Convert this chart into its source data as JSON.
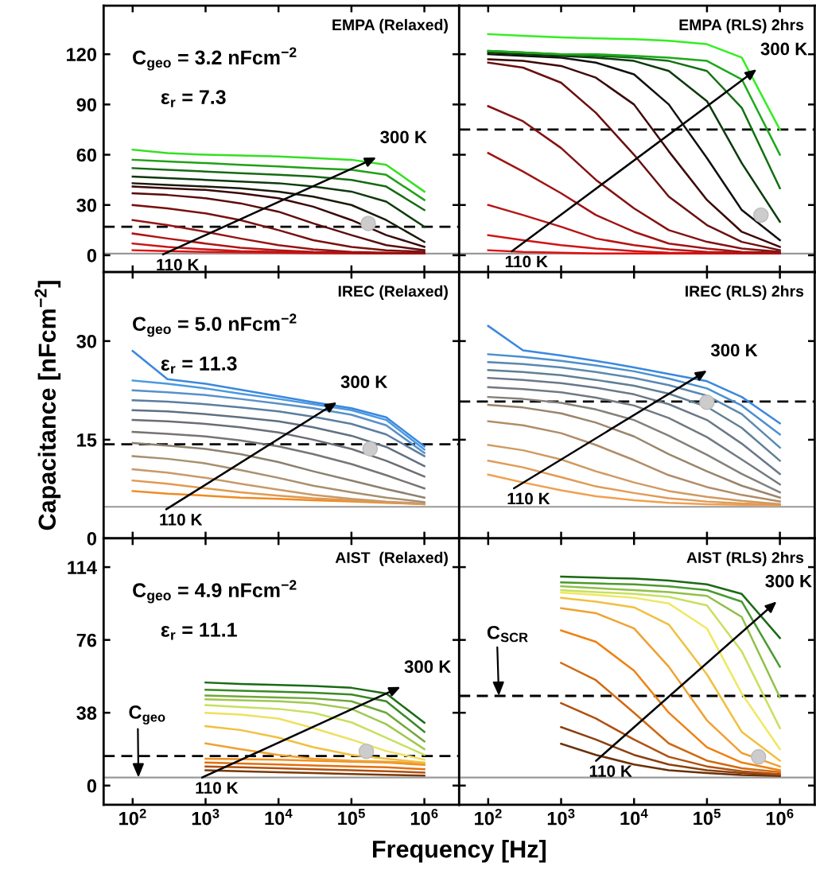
{
  "chart_data": [
    {
      "type": "line",
      "title": "EMPA (Relaxed)",
      "log": "x",
      "tick_labels": "y",
      "xlim": [
        40,
        3000000
      ],
      "ylim": [
        -10,
        149
      ],
      "xticks": [
        {
          "value": 100,
          "label": null
        },
        {
          "value": 1000,
          "label": null
        },
        {
          "value": 10000,
          "label": null
        },
        {
          "value": 100000,
          "label": null
        },
        {
          "value": 1000000,
          "label": null
        }
      ],
      "yticks": [
        0,
        30,
        60,
        90,
        120
      ],
      "x": [
        100,
        300,
        1000,
        3000,
        10000,
        30000,
        100000,
        300000,
        1000000
      ],
      "series": [
        {
          "color": "#e01010",
          "values": [
            3,
            2.5,
            2,
            1.8,
            1.5,
            1.3,
            1.2,
            1,
            1
          ]
        },
        {
          "color": "#c81414",
          "values": [
            7,
            5,
            3.5,
            2.5,
            2,
            1.5,
            1.3,
            1.1,
            1
          ]
        },
        {
          "color": "#b01515",
          "values": [
            13,
            10,
            7,
            4.5,
            3,
            2,
            1.5,
            1.2,
            1
          ]
        },
        {
          "color": "#961414",
          "values": [
            21,
            18,
            14,
            10,
            6,
            3.5,
            2,
            1.5,
            1.2
          ]
        },
        {
          "color": "#7a1010",
          "values": [
            30,
            28,
            25,
            21,
            15,
            9,
            5,
            3,
            2
          ]
        },
        {
          "color": "#5c0c0c",
          "values": [
            37,
            36,
            34,
            31,
            26,
            19,
            12,
            6,
            3
          ]
        },
        {
          "color": "#3c0808",
          "values": [
            41,
            40,
            39,
            37,
            34,
            29,
            21,
            12,
            5
          ]
        },
        {
          "color": "#1a1a0a",
          "values": [
            43,
            42,
            41,
            40,
            38,
            35,
            30,
            21,
            8
          ]
        },
        {
          "color": "#0f3a0f",
          "values": [
            47,
            46,
            45,
            44,
            43,
            41,
            38,
            32,
            17
          ]
        },
        {
          "color": "#176a14",
          "values": [
            52,
            51,
            50,
            49,
            48,
            47,
            45,
            41,
            27
          ]
        },
        {
          "color": "#22a018",
          "values": [
            57,
            56,
            55,
            54,
            53,
            52,
            51,
            48,
            33
          ]
        },
        {
          "color": "#33e020",
          "values": [
            63,
            61,
            60,
            59.5,
            59,
            58,
            57,
            54,
            38
          ]
        },
        {
          "type": "scatter",
          "marker": "circle",
          "color": "#cccccc",
          "x": [
            170000
          ],
          "values": [
            19
          ]
        }
      ],
      "ref_lines": [
        {
          "axis": "y",
          "value": 1,
          "color": "#999999",
          "line_style": "solid"
        },
        {
          "axis": "y",
          "value": 17,
          "color": "#000000",
          "line_style": "dashed"
        }
      ],
      "annotations": [
        "110 K",
        "300 K",
        "C$_{geo}$ = 3.2 nFcm$^{−2}$",
        "ε$_{r}$ = 7.3"
      ]
    },
    {
      "type": "line",
      "title": "EMPA (RLS) 2hrs",
      "log": "x",
      "tick_labels": false,
      "xlim": [
        40,
        3000000
      ],
      "ylim": [
        -10,
        149
      ],
      "xticks": [
        {
          "value": 100,
          "label": null
        },
        {
          "value": 1000,
          "label": null
        },
        {
          "value": 10000,
          "label": null
        },
        {
          "value": 100000,
          "label": null
        },
        {
          "value": 1000000,
          "label": null
        }
      ],
      "yticks": [
        0,
        30,
        60,
        90,
        120
      ],
      "x": [
        100,
        300,
        1000,
        3000,
        10000,
        30000,
        100000,
        300000,
        1000000
      ],
      "series": [
        {
          "color": "#e01010",
          "values": [
            3,
            2,
            1.5,
            1,
            1,
            1,
            1,
            1,
            1
          ]
        },
        {
          "color": "#d01414",
          "values": [
            12,
            9,
            6,
            4,
            2.5,
            1.5,
            1.2,
            1,
            1
          ]
        },
        {
          "color": "#b81515",
          "values": [
            30,
            24,
            17,
            10,
            6,
            3.5,
            2,
            1.5,
            1
          ]
        },
        {
          "color": "#a01414",
          "values": [
            61,
            50,
            37,
            24,
            14,
            7,
            4,
            2,
            1.5
          ]
        },
        {
          "color": "#841212",
          "values": [
            89,
            80,
            64,
            45,
            28,
            15,
            8,
            4,
            2
          ]
        },
        {
          "color": "#6a1010",
          "values": [
            115,
            112,
            103,
            85,
            60,
            35,
            18,
            8,
            3
          ]
        },
        {
          "color": "#3c0808",
          "values": [
            117,
            116,
            113,
            106,
            90,
            62,
            33,
            14,
            5
          ]
        },
        {
          "color": "#101010",
          "values": [
            120,
            119,
            118,
            115,
            108,
            90,
            58,
            27,
            9
          ]
        },
        {
          "color": "#0c3a0c",
          "values": [
            121,
            120,
            119,
            118,
            116,
            110,
            92,
            55,
            20
          ]
        },
        {
          "color": "#127012",
          "values": [
            122,
            121,
            120,
            119,
            118,
            116,
            110,
            88,
            40
          ]
        },
        {
          "color": "#1ea81c",
          "values": [
            122,
            121,
            120,
            120,
            119,
            118,
            116,
            105,
            60
          ]
        },
        {
          "color": "#33ee22",
          "values": [
            132,
            131,
            130,
            129.5,
            129,
            128,
            126,
            118,
            75
          ]
        },
        {
          "type": "scatter",
          "marker": "circle",
          "color": "#cccccc",
          "x": [
            550000
          ],
          "values": [
            24
          ]
        }
      ],
      "ref_lines": [
        {
          "axis": "y",
          "value": 1,
          "color": "#999999",
          "line_style": "solid"
        },
        {
          "axis": "y",
          "value": 75,
          "color": "#000000",
          "line_style": "dashed"
        }
      ],
      "annotations": [
        "110 K",
        "300 K"
      ]
    },
    {
      "type": "line",
      "title": "IREC (Relaxed)",
      "ylabel": "Capacitance [nFcm$^{−2}$]",
      "log": "x",
      "tick_labels": "y",
      "xlim": [
        40,
        3000000
      ],
      "ylim": [
        0,
        40.5
      ],
      "xticks": [
        {
          "value": 100,
          "label": null
        },
        {
          "value": 1000,
          "label": null
        },
        {
          "value": 10000,
          "label": null
        },
        {
          "value": 100000,
          "label": null
        },
        {
          "value": 1000000,
          "label": null
        }
      ],
      "yticks": [
        0,
        15,
        30
      ],
      "x": [
        100,
        300,
        1000,
        3000,
        10000,
        30000,
        100000,
        300000,
        1000000
      ],
      "series": [
        {
          "color": "#f08a20",
          "values": [
            7.2,
            6.8,
            6.5,
            6.2,
            6,
            5.8,
            5.6,
            5.4,
            5.2
          ]
        },
        {
          "color": "#e09a50",
          "values": [
            8.8,
            8.3,
            7.6,
            7,
            6.5,
            6.1,
            5.8,
            5.5,
            5.2
          ]
        },
        {
          "color": "#c89a6a",
          "values": [
            10.5,
            10,
            9.2,
            8.3,
            7.4,
            6.6,
            6,
            5.6,
            5.3
          ]
        },
        {
          "color": "#a8906e",
          "values": [
            12.5,
            12.1,
            11.4,
            10.4,
            9.2,
            8,
            7,
            6.2,
            5.5
          ]
        },
        {
          "color": "#8c8070",
          "values": [
            14.5,
            14.1,
            13.6,
            12.8,
            11.6,
            10.2,
            8.8,
            7.5,
            6.2
          ]
        },
        {
          "color": "#787474",
          "values": [
            16.2,
            15.9,
            15.5,
            14.9,
            14,
            12.8,
            11.3,
            9.6,
            7.6
          ]
        },
        {
          "color": "#6a6e74",
          "values": [
            18,
            17.8,
            17.4,
            16.9,
            16.1,
            15,
            13.6,
            11.8,
            9.4
          ]
        },
        {
          "color": "#607080",
          "values": [
            19.5,
            19.3,
            18.9,
            18.4,
            17.8,
            16.9,
            15.6,
            13.9,
            11
          ]
        },
        {
          "color": "#5a7ea0",
          "values": [
            21,
            20.8,
            20.4,
            19.9,
            19.3,
            18.5,
            17.4,
            15.8,
            12.5
          ]
        },
        {
          "color": "#5a90c8",
          "values": [
            22.5,
            22.2,
            21.8,
            21.2,
            20.5,
            19.8,
            18.8,
            17.2,
            13
          ]
        },
        {
          "color": "#4a98e0",
          "values": [
            24,
            23.5,
            22.8,
            22,
            21.2,
            20.4,
            19.5,
            18,
            13.5
          ]
        },
        {
          "color": "#3a88e0",
          "values": [
            28.5,
            24.2,
            23.5,
            22.6,
            21.6,
            20.7,
            19.8,
            18.4,
            14
          ]
        },
        {
          "type": "scatter",
          "marker": "circle",
          "color": "#cccccc",
          "x": [
            180000
          ],
          "values": [
            13.6
          ]
        }
      ],
      "ref_lines": [
        {
          "axis": "y",
          "value": 4.8,
          "color": "#999999",
          "line_style": "solid"
        },
        {
          "axis": "y",
          "value": 14.3,
          "color": "#000000",
          "line_style": "dashed"
        }
      ],
      "annotations": [
        "110 K",
        "300 K",
        "C$_{geo}$ = 5.0 nFcm$^{−2}$",
        "ε$_{r}$ = 11.3"
      ]
    },
    {
      "type": "line",
      "title": "IREC (RLS) 2hrs",
      "log": "x",
      "tick_labels": false,
      "xlim": [
        40,
        3000000
      ],
      "ylim": [
        0,
        40.5
      ],
      "xticks": [
        {
          "value": 100,
          "label": null
        },
        {
          "value": 1000,
          "label": null
        },
        {
          "value": 10000,
          "label": null
        },
        {
          "value": 100000,
          "label": null
        },
        {
          "value": 1000000,
          "label": null
        }
      ],
      "yticks": [
        0,
        15,
        30
      ],
      "x": [
        100,
        300,
        1000,
        3000,
        10000,
        30000,
        100000,
        300000,
        1000000
      ],
      "series": [
        {
          "color": "#f0a050",
          "values": [
            9.7,
            8.5,
            7.3,
            6.4,
            5.8,
            5.4,
            5.2,
            5.1,
            5
          ]
        },
        {
          "color": "#e09a58",
          "values": [
            11.8,
            10.8,
            9.3,
            7.9,
            6.9,
            6.1,
            5.6,
            5.3,
            5.1
          ]
        },
        {
          "color": "#d09a60",
          "values": [
            14.2,
            13.4,
            12,
            10.2,
            8.5,
            7.2,
            6.3,
            5.7,
            5.2
          ]
        },
        {
          "color": "#b08c68",
          "values": [
            17.8,
            17.2,
            16,
            14.2,
            11.9,
            9.6,
            7.8,
            6.6,
            5.6
          ]
        },
        {
          "color": "#9a846c",
          "values": [
            20.3,
            19.9,
            19,
            17.6,
            15.5,
            12.8,
            10.2,
            8,
            6.2
          ]
        },
        {
          "color": "#84807a",
          "values": [
            21.5,
            21.2,
            20.6,
            19.6,
            18,
            15.6,
            12.7,
            9.8,
            7
          ]
        },
        {
          "color": "#727a80",
          "values": [
            23,
            22.7,
            22.2,
            21.4,
            20.2,
            18.3,
            15.4,
            12,
            8.2
          ]
        },
        {
          "color": "#6a7888",
          "values": [
            24.4,
            24.1,
            23.6,
            22.9,
            21.9,
            20.4,
            18,
            14.4,
            9.8
          ]
        },
        {
          "color": "#608094",
          "values": [
            25.6,
            25.3,
            24.8,
            24.1,
            23.2,
            22,
            20,
            16.8,
            11.8
          ]
        },
        {
          "color": "#5a88b0",
          "values": [
            26.8,
            26.5,
            26,
            25.3,
            24.4,
            23.3,
            21.7,
            18.9,
            13.8
          ]
        },
        {
          "color": "#4a90d0",
          "values": [
            28,
            27.6,
            27,
            26.3,
            25.4,
            24.3,
            22.8,
            20.2,
            15.8
          ]
        },
        {
          "color": "#3a88e0",
          "values": [
            32.3,
            28.6,
            27.8,
            27,
            26,
            25,
            23.9,
            21.5,
            17.5
          ]
        },
        {
          "type": "scatter",
          "marker": "circle",
          "color": "#cccccc",
          "x": [
            100000
          ],
          "values": [
            20.7
          ]
        }
      ],
      "ref_lines": [
        {
          "axis": "y",
          "value": 4.8,
          "color": "#999999",
          "line_style": "solid"
        },
        {
          "axis": "y",
          "value": 20.8,
          "color": "#000000",
          "line_style": "dashed"
        }
      ],
      "annotations": [
        "110 K",
        "300 K"
      ]
    },
    {
      "type": "line",
      "title": "AIST  (Relaxed)",
      "xlabel": "Frequency [Hz]",
      "log": "x",
      "xlim": [
        40,
        3000000
      ],
      "ylim": [
        -10,
        129
      ],
      "xticks": [
        {
          "value": 100,
          "label": "10$^{2}$"
        },
        {
          "value": 1000,
          "label": "10$^{3}$"
        },
        {
          "value": 10000,
          "label": "10$^{4}$"
        },
        {
          "value": 100000,
          "label": "10$^{5}$"
        },
        {
          "value": 1000000,
          "label": "10$^{6}$"
        }
      ],
      "yticks": [
        0,
        38,
        76,
        114
      ],
      "x": [
        1000,
        3000,
        10000,
        30000,
        100000,
        300000,
        1000000
      ],
      "series": [
        {
          "color": "#7a3a08",
          "values": [
            8,
            7.5,
            7,
            6.5,
            6,
            5.6,
            5.2
          ]
        },
        {
          "color": "#b05010",
          "values": [
            10,
            9.5,
            9,
            8.5,
            8,
            7.5,
            6.8
          ]
        },
        {
          "color": "#e07010",
          "values": [
            12,
            11.5,
            11,
            10.5,
            10,
            9.5,
            8.5
          ]
        },
        {
          "color": "#f09020",
          "values": [
            14,
            13.8,
            13.5,
            13,
            12.5,
            12,
            10.8
          ]
        },
        {
          "color": "#f0a030",
          "values": [
            22,
            19,
            16,
            14,
            13,
            12.5,
            11.5
          ]
        },
        {
          "color": "#f0c040",
          "values": [
            31,
            29,
            25,
            20,
            16,
            14,
            12
          ]
        },
        {
          "color": "#f0e060",
          "values": [
            38,
            37,
            35,
            30,
            24,
            18,
            13.5
          ]
        },
        {
          "color": "#c8e060",
          "values": [
            42,
            41,
            40,
            38,
            33,
            25,
            16
          ]
        },
        {
          "color": "#a0c850",
          "values": [
            45,
            44.5,
            44,
            43,
            40,
            32,
            19
          ]
        },
        {
          "color": "#70a838",
          "values": [
            47,
            46.5,
            46,
            45.5,
            44,
            38,
            23
          ]
        },
        {
          "color": "#3a8a24",
          "values": [
            50,
            49.5,
            49,
            48.5,
            47.5,
            44,
            28
          ]
        },
        {
          "color": "#1a6a14",
          "values": [
            53.8,
            53,
            52.5,
            52,
            51,
            48,
            32.8
          ]
        },
        {
          "type": "scatter",
          "marker": "circle",
          "color": "#cccccc",
          "x": [
            160000
          ],
          "values": [
            17.9
          ]
        }
      ],
      "ref_lines": [
        {
          "axis": "y",
          "value": 4.2,
          "color": "#999999",
          "line_style": "solid"
        },
        {
          "axis": "y",
          "value": 15.4,
          "color": "#000000",
          "line_style": "dashed"
        }
      ],
      "annotations": [
        "110 K",
        "300 K",
        {
          "text": "C$_{geo}$",
          "x": 120,
          "y": 4.2
        },
        "C$_{geo}$ = 4.9 nFcm$^{−2}$",
        "ε$_{r}$ = 11.1"
      ]
    },
    {
      "type": "line",
      "title": "AIST (RLS) 2hrs",
      "log": "x",
      "tick_labels": "x",
      "xlim": [
        40,
        3000000
      ],
      "ylim": [
        -10,
        129
      ],
      "xticks": [
        {
          "value": 100,
          "label": "10$^{2}$"
        },
        {
          "value": 1000,
          "label": "10$^{3}$"
        },
        {
          "value": 10000,
          "label": "10$^{4}$"
        },
        {
          "value": 100000,
          "label": "10$^{5}$"
        },
        {
          "value": 1000000,
          "label": "10$^{6}$"
        }
      ],
      "yticks": [
        0,
        38,
        76,
        114
      ],
      "x": [
        1000,
        3000,
        10000,
        30000,
        100000,
        300000,
        1000000
      ],
      "series": [
        {
          "color": "#6a3008",
          "values": [
            21.8,
            16,
            11,
            8,
            6.5,
            5.5,
            5
          ]
        },
        {
          "color": "#8a4010",
          "values": [
            30.5,
            24,
            16,
            11,
            8,
            6.5,
            5.5
          ]
        },
        {
          "color": "#b05010",
          "values": [
            43,
            35,
            24,
            15,
            10,
            7.5,
            6
          ]
        },
        {
          "color": "#d06a10",
          "values": [
            64,
            55,
            38,
            22,
            13,
            9,
            7
          ]
        },
        {
          "color": "#f08010",
          "values": [
            81,
            75,
            60,
            38,
            20,
            12,
            8
          ]
        },
        {
          "color": "#f0a030",
          "values": [
            92.6,
            90,
            82,
            62,
            34,
            17,
            10
          ]
        },
        {
          "color": "#f0c040",
          "values": [
            98,
            96,
            93,
            84,
            58,
            28,
            13
          ]
        },
        {
          "color": "#f0e860",
          "values": [
            100.7,
            99.5,
            98,
            95,
            82,
            48,
            19
          ]
        },
        {
          "color": "#c8e060",
          "values": [
            102,
            101,
            100,
            98.5,
            94,
            70,
            30
          ]
        },
        {
          "color": "#90c048",
          "values": [
            104,
            103,
            102,
            101,
            99,
            88,
            46
          ]
        },
        {
          "color": "#4a9a30",
          "values": [
            106,
            105.5,
            105,
            104,
            102,
            96,
            62
          ]
        },
        {
          "color": "#1a6a14",
          "values": [
            109,
            108.5,
            108,
            107,
            105,
            100,
            77
          ]
        },
        {
          "type": "scatter",
          "marker": "circle",
          "color": "#cccccc",
          "x": [
            510000
          ],
          "values": [
            15
          ]
        }
      ],
      "ref_lines": [
        {
          "axis": "y",
          "value": 4.2,
          "color": "#999999",
          "line_style": "solid"
        },
        {
          "axis": "y",
          "value": 46.8,
          "color": "#000000",
          "line_style": "dashed"
        }
      ],
      "annotations": [
        "110 K",
        "300 K",
        {
          "text": "C$_{SCR}$",
          "x": 140,
          "y": 46.8
        }
      ]
    }
  ]
}
